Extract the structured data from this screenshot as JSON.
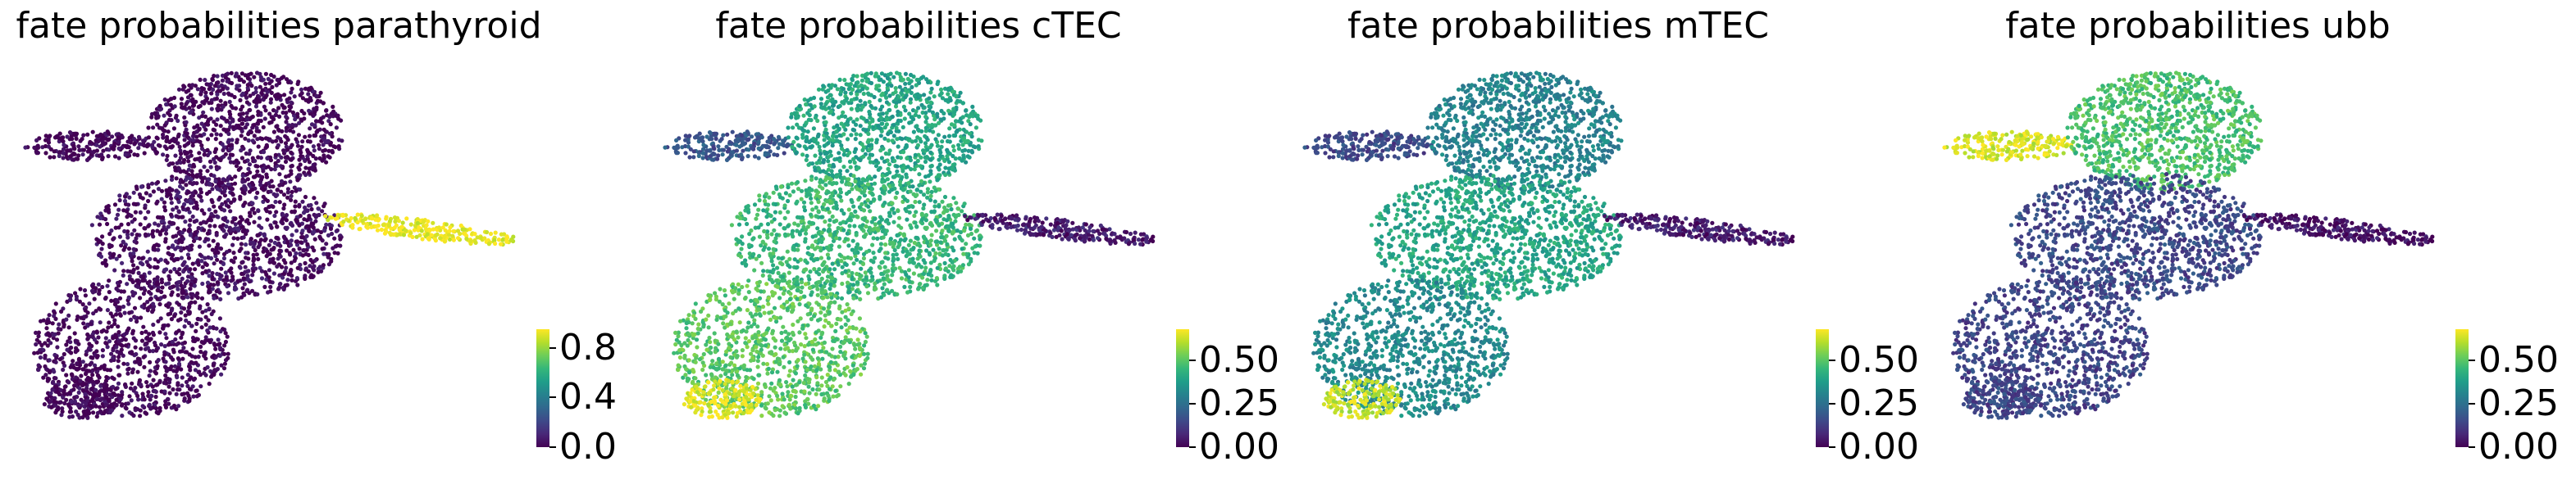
{
  "colors": {
    "viridis": [
      "#440154",
      "#482878",
      "#3e4989",
      "#31688e",
      "#26828e",
      "#1f9e89",
      "#35b779",
      "#6ece58",
      "#b5de2b",
      "#fde725"
    ]
  },
  "chart_data": [
    {
      "type": "scatter",
      "title": "fate probabilities parathyroid",
      "colorbar": {
        "ticks": [
          "0.0",
          "0.4",
          "0.8"
        ],
        "tick_values": [
          0.0,
          0.4,
          0.8
        ],
        "range": [
          0.0,
          0.95
        ]
      },
      "region_values": {
        "top_left_arm": 0.0,
        "upper_blob": 0.0,
        "middle_blob": 0.02,
        "lower_blob": 0.0,
        "bottom_tip": 0.0,
        "right_arm": 0.93
      },
      "grid": false
    },
    {
      "type": "scatter",
      "title": "fate probabilities cTEC",
      "colorbar": {
        "ticks": [
          "0.00",
          "0.25",
          "0.50"
        ],
        "tick_values": [
          0.0,
          0.25,
          0.5
        ],
        "range": [
          0.0,
          0.68
        ]
      },
      "region_values": {
        "top_left_arm": 0.18,
        "upper_blob": 0.4,
        "middle_blob": 0.45,
        "lower_blob": 0.5,
        "bottom_tip": 0.65,
        "right_arm": 0.05
      },
      "grid": false
    },
    {
      "type": "scatter",
      "title": "fate probabilities mTEC",
      "colorbar": {
        "ticks": [
          "0.00",
          "0.25",
          "0.50"
        ],
        "tick_values": [
          0.0,
          0.25,
          0.5
        ],
        "range": [
          0.0,
          0.68
        ]
      },
      "region_values": {
        "top_left_arm": 0.15,
        "upper_blob": 0.3,
        "middle_blob": 0.4,
        "lower_blob": 0.32,
        "bottom_tip": 0.62,
        "right_arm": 0.05
      },
      "grid": false
    },
    {
      "type": "scatter",
      "title": "fate probabilities ubb",
      "colorbar": {
        "ticks": [
          "0.00",
          "0.25",
          "0.50"
        ],
        "tick_values": [
          0.0,
          0.25,
          0.5
        ],
        "range": [
          0.0,
          0.68
        ]
      },
      "region_values": {
        "top_left_arm": 0.64,
        "upper_blob": 0.48,
        "middle_blob": 0.15,
        "lower_blob": 0.14,
        "bottom_tip": 0.14,
        "right_arm": 0.03
      },
      "grid": false
    }
  ]
}
